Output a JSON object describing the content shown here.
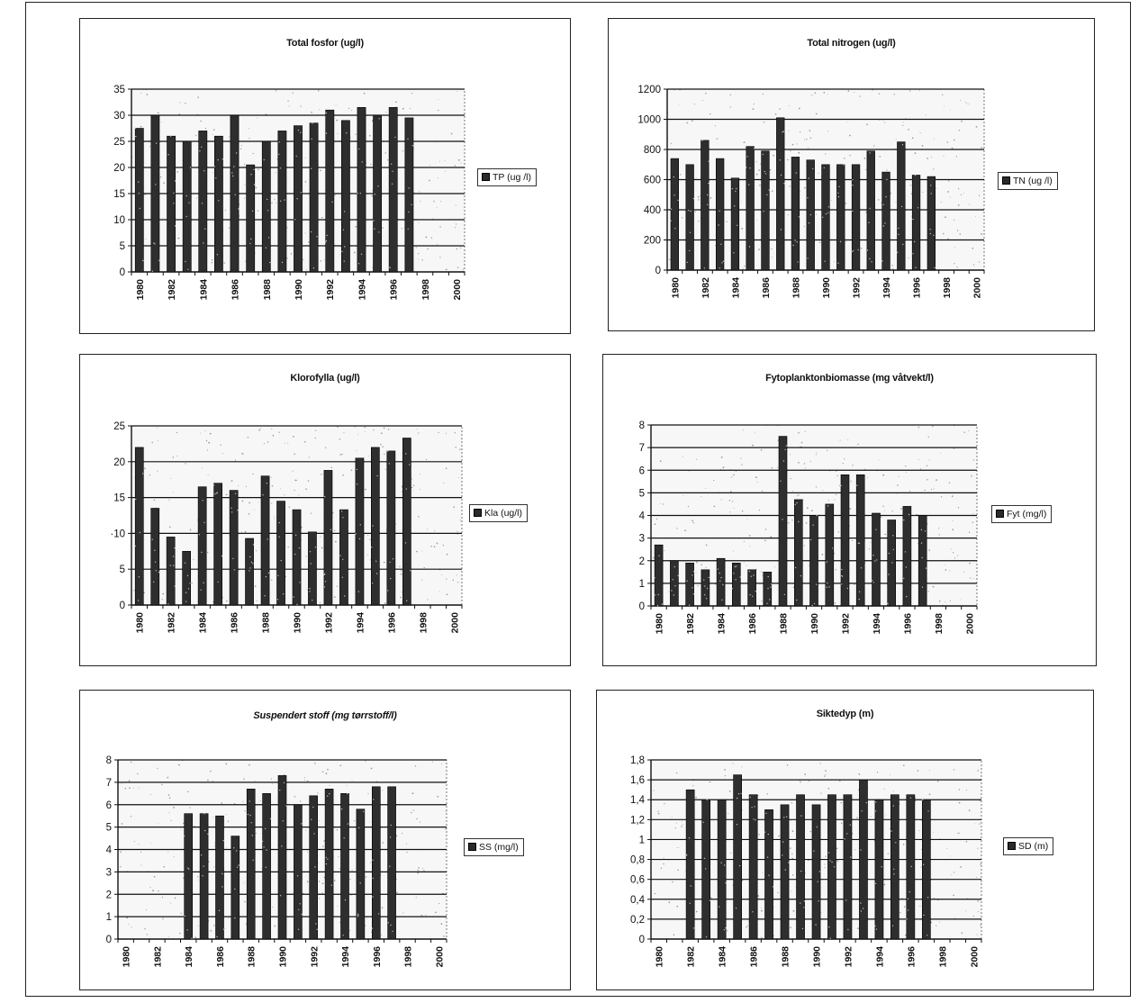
{
  "chart_data": [
    {
      "type": "bar",
      "title": "Total fosfor (ug/l)",
      "legend": "TP (ug /l)",
      "legend_position": "right",
      "grid": true,
      "ylim": [
        0,
        35
      ],
      "yticks": [
        "0",
        "5",
        "10",
        "15",
        "20",
        "25",
        "30",
        "35"
      ],
      "xticks": [
        "1980",
        "1982",
        "1984",
        "1986",
        "1988",
        "1990",
        "1992",
        "1994",
        "1996",
        "1998",
        "2000"
      ],
      "x": [
        1980,
        1981,
        1982,
        1983,
        1984,
        1985,
        1986,
        1987,
        1988,
        1989,
        1990,
        1991,
        1992,
        1993,
        1994,
        1995,
        1996,
        1997
      ],
      "values": [
        27.5,
        30,
        26,
        25,
        27,
        26,
        30,
        20.5,
        25,
        27,
        28,
        28.5,
        31,
        29,
        31.5,
        30,
        31.5,
        29.5
      ]
    },
    {
      "type": "bar",
      "title": "Total nitrogen (ug/l)",
      "legend": "TN (ug /l)",
      "legend_position": "right",
      "grid": true,
      "ylim": [
        0,
        1200
      ],
      "yticks": [
        "0",
        "200",
        "400",
        "600",
        "800",
        "1000",
        "1200"
      ],
      "xticks": [
        "1980",
        "1982",
        "1984",
        "1986",
        "1988",
        "1990",
        "1992",
        "1994",
        "1996",
        "1998",
        "2000"
      ],
      "x": [
        1980,
        1981,
        1982,
        1983,
        1984,
        1985,
        1986,
        1987,
        1988,
        1989,
        1990,
        1991,
        1992,
        1993,
        1994,
        1995,
        1996,
        1997
      ],
      "values": [
        740,
        700,
        860,
        740,
        610,
        820,
        790,
        1010,
        750,
        730,
        700,
        700,
        700,
        790,
        650,
        850,
        630,
        620
      ]
    },
    {
      "type": "bar",
      "title": "Klorofylla (ug/l)",
      "legend": "Kla (ug/l)",
      "legend_position": "right",
      "grid": true,
      "ylim": [
        0,
        25
      ],
      "yticks": [
        "0",
        "5",
        "·10",
        "15",
        "20",
        "25"
      ],
      "xticks": [
        "1980",
        "1982",
        "1984",
        "1986",
        "1988",
        "1990",
        "1992",
        "1994",
        "1996",
        "1998",
        "2000"
      ],
      "x": [
        1980,
        1981,
        1982,
        1983,
        1984,
        1985,
        1986,
        1987,
        1988,
        1989,
        1990,
        1991,
        1992,
        1993,
        1994,
        1995,
        1996,
        1997
      ],
      "values": [
        22,
        13.5,
        9.5,
        7.5,
        16.5,
        17,
        16,
        9.3,
        18,
        14.5,
        13.3,
        10.2,
        18.8,
        13.3,
        20.5,
        22,
        21.5,
        23.3
      ]
    },
    {
      "type": "bar",
      "title": "Fytoplanktonbiomasse (mg våtvekt/l)",
      "legend": "Fyt (mg/l)",
      "legend_position": "right",
      "grid": true,
      "ylim": [
        0,
        8
      ],
      "yticks": [
        "0",
        "1",
        "2",
        "3",
        "4",
        "5",
        "6",
        "7",
        "8"
      ],
      "xticks": [
        "1980",
        "1982",
        "1984",
        "1986",
        "1988",
        "1990",
        "1992",
        "1994",
        "1996",
        "1998",
        "2000"
      ],
      "x": [
        1980,
        1981,
        1982,
        1983,
        1984,
        1985,
        1986,
        1987,
        1988,
        1989,
        1990,
        1991,
        1992,
        1993,
        1994,
        1995,
        1996,
        1997
      ],
      "values": [
        2.7,
        2,
        1.9,
        1.6,
        2.1,
        1.9,
        1.6,
        1.5,
        7.5,
        4.7,
        4,
        4.5,
        5.8,
        5.8,
        4.1,
        3.8,
        4.4,
        4
      ]
    },
    {
      "type": "bar",
      "title": "Suspendert stoff (mg tørrstoff/l)",
      "legend": "SS (mg/l)",
      "legend_position": "right",
      "grid": true,
      "ylim": [
        0,
        8
      ],
      "yticks": [
        "0",
        "1",
        "2",
        "3",
        "4",
        "5",
        "6",
        "7",
        "8"
      ],
      "xticks": [
        "1980",
        "1982",
        "1984",
        "1986",
        "1988",
        "1990",
        "1992",
        "1994",
        "1996",
        "1998",
        "2000"
      ],
      "x": [
        1984,
        1985,
        1986,
        1987,
        1988,
        1989,
        1990,
        1991,
        1992,
        1993,
        1994,
        1995,
        1996,
        1997
      ],
      "values": [
        5.6,
        5.6,
        5.5,
        4.6,
        6.7,
        6.5,
        7.3,
        6,
        6.4,
        6.7,
        6.5,
        5.8,
        6.8,
        6.8
      ]
    },
    {
      "type": "bar",
      "title": "Siktedyp (m)",
      "legend": "SD (m)",
      "legend_position": "right",
      "grid": true,
      "ylim": [
        0,
        1.8
      ],
      "yticks": [
        "0",
        "0,2",
        "0,4",
        "0,6",
        "0,8",
        "1",
        "1,2",
        "1,4",
        "1,6",
        "1,8"
      ],
      "xticks": [
        "1980",
        "1982",
        "1984",
        "1986",
        "1988",
        "1990",
        "1992",
        "1994",
        "1996",
        "1998",
        "2000"
      ],
      "x": [
        1982,
        1983,
        1984,
        1985,
        1986,
        1987,
        1988,
        1989,
        1990,
        1991,
        1992,
        1993,
        1994,
        1995,
        1996,
        1997
      ],
      "values": [
        1.5,
        1.4,
        1.4,
        1.65,
        1.45,
        1.3,
        1.35,
        1.45,
        1.35,
        1.45,
        1.45,
        1.6,
        1.4,
        1.45,
        1.45,
        1.4
      ]
    }
  ]
}
